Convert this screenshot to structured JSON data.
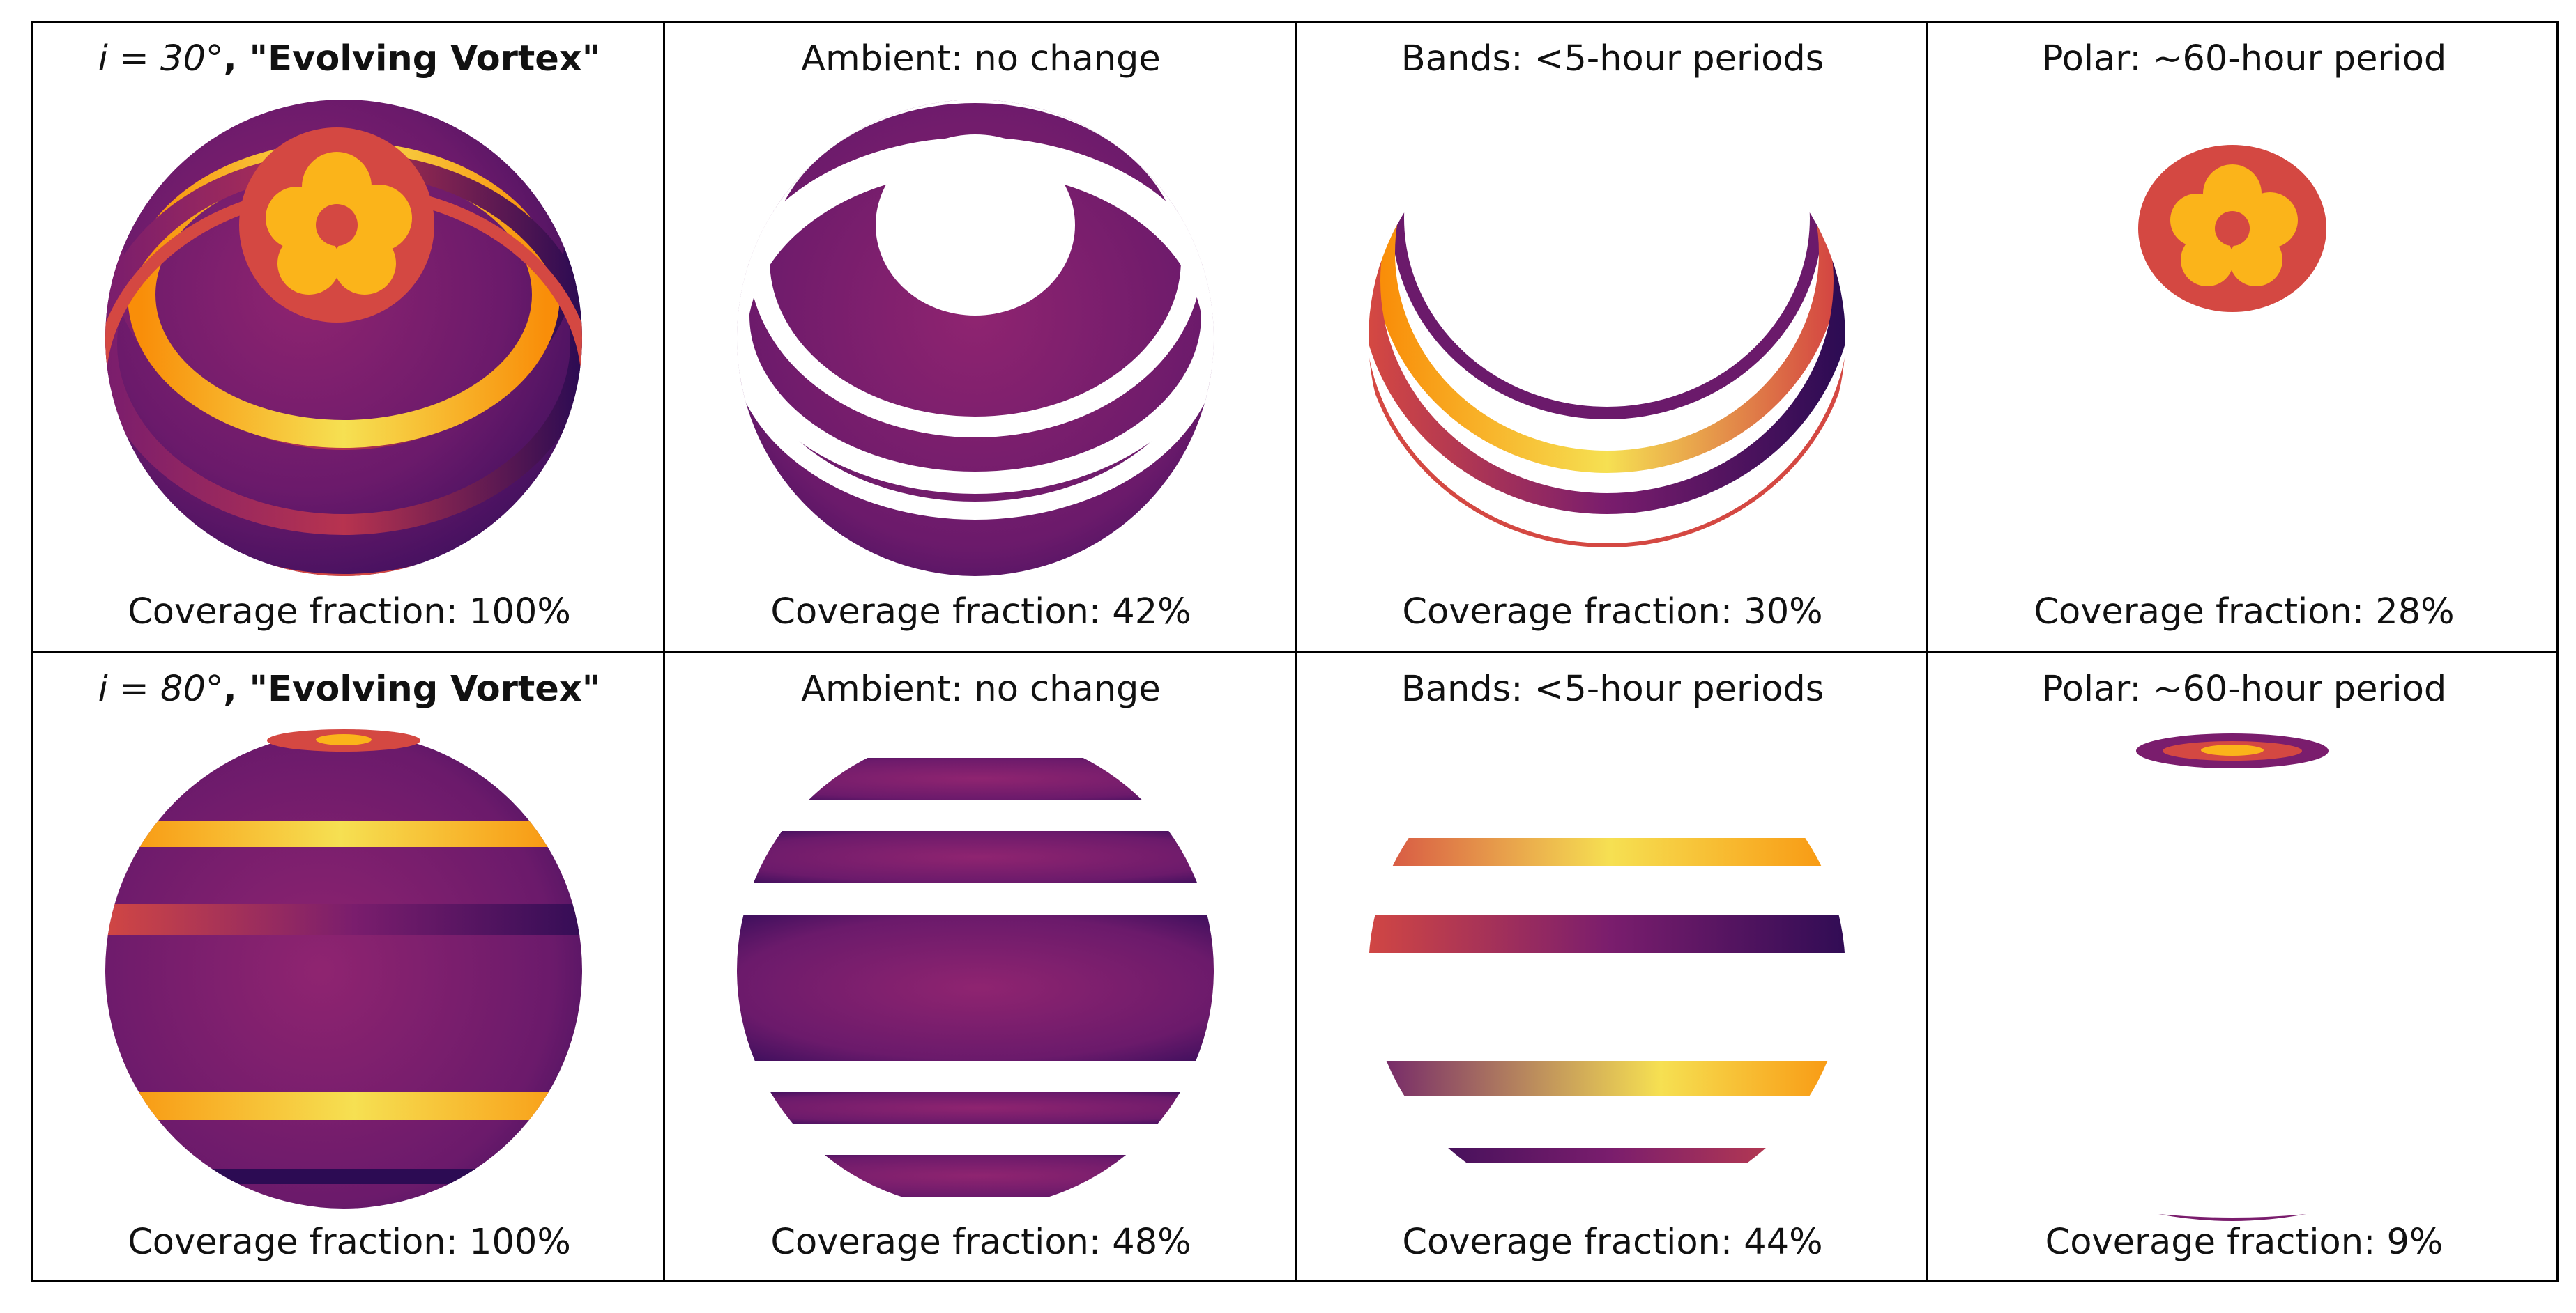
{
  "panels": [
    {
      "row": 0,
      "col": 0,
      "title_prefix": "i = 30°",
      "title_bold": ", \"Evolving Vortex\"",
      "title": "",
      "coverage": "Coverage fraction: 100%",
      "globe": "i30-full"
    },
    {
      "row": 0,
      "col": 1,
      "title": "Ambient: no change",
      "coverage": "Coverage fraction: 42%",
      "globe": "i30-ambient"
    },
    {
      "row": 0,
      "col": 2,
      "title": "Bands: <5-hour periods",
      "coverage": "Coverage fraction: 30%",
      "globe": "i30-bands"
    },
    {
      "row": 0,
      "col": 3,
      "title": "Polar: ~60-hour period",
      "coverage": "Coverage fraction: 28%",
      "globe": "i30-polar"
    },
    {
      "row": 1,
      "col": 0,
      "title_prefix": "i = 80°",
      "title_bold": ", \"Evolving Vortex\"",
      "title": "",
      "coverage": "Coverage fraction: 100%",
      "globe": "i80-full"
    },
    {
      "row": 1,
      "col": 1,
      "title": "Ambient: no change",
      "coverage": "Coverage fraction: 48%",
      "globe": "i80-ambient"
    },
    {
      "row": 1,
      "col": 2,
      "title": "Bands: <5-hour periods",
      "coverage": "Coverage fraction: 44%",
      "globe": "i80-bands"
    },
    {
      "row": 1,
      "col": 3,
      "title": "Polar: ~60-hour period",
      "coverage": "Coverage fraction: 9%",
      "globe": "i80-polar"
    }
  ],
  "colors": {
    "ambient_dark": "#4a1268",
    "ambient_mid": "#7a1d6d",
    "ambient_light": "#8f2470",
    "band_yellow": "#f2e05a",
    "band_orange": "#f98e09",
    "band_red": "#d44842",
    "band_dark": "#2c0b53",
    "polar_red": "#d44842",
    "vortex_orange": "#fbb41a",
    "vortex_yellow": "#fcc629"
  }
}
